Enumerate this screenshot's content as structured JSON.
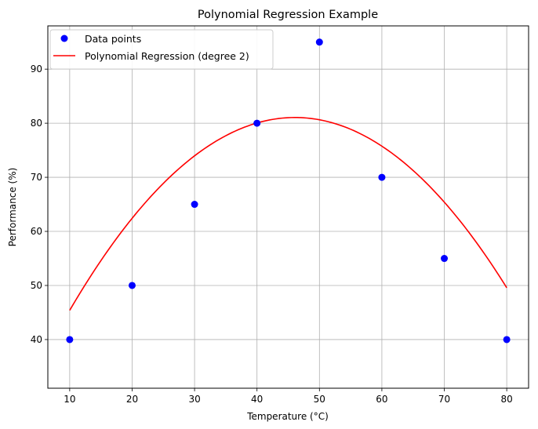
{
  "chart_data": {
    "type": "scatter",
    "title": "Polynomial Regression Example",
    "xlabel": "Temperature (°C)",
    "ylabel": "Performance (%)",
    "xlim": [
      6.5,
      83.5
    ],
    "ylim": [
      31,
      98
    ],
    "xticks": [
      10,
      20,
      30,
      40,
      50,
      60,
      70,
      80
    ],
    "yticks": [
      40,
      50,
      60,
      70,
      80,
      90
    ],
    "grid": true,
    "legend_position": "top-left",
    "series": [
      {
        "name": "Data points",
        "kind": "scatter",
        "color": "#0000ff",
        "x": [
          10,
          20,
          30,
          40,
          50,
          60,
          70,
          80
        ],
        "y": [
          40,
          50,
          65,
          80,
          95,
          70,
          55,
          40
        ]
      },
      {
        "name": "Polynomial Regression (degree 2)",
        "kind": "line",
        "color": "#ff0000",
        "degree": 2,
        "coefficients": [
          -0.02738,
          2.5238,
          22.9
        ]
      }
    ]
  }
}
